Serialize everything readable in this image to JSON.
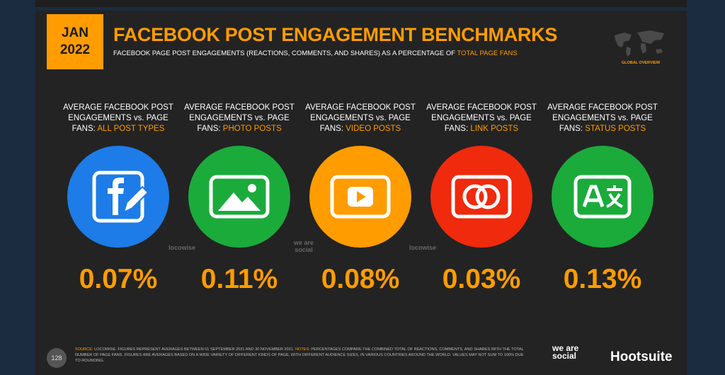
{
  "header": {
    "badge": [
      "JAN",
      "2022"
    ],
    "title": "FACEBOOK POST ENGAGEMENT BENCHMARKS",
    "subtitle": "FACEBOOK PAGE POST ENGAGEMENTS (REACTIONS, COMMENTS, AND SHARES) AS A PERCENTAGE OF",
    "subtitle_highlight": "TOTAL PAGE FANS",
    "region": "GLOBAL OVERVIEW"
  },
  "panels": [
    {
      "label": [
        "AVERAGE FACEBOOK POST",
        "ENGAGEMENTS vs. PAGE",
        "FANS:"
      ],
      "highlight": "ALL POST TYPES",
      "value": "0.07%",
      "color": "#1d7ce8"
    },
    {
      "label": [
        "AVERAGE FACEBOOK POST",
        "ENGAGEMENTS vs. PAGE",
        "FANS:"
      ],
      "highlight": "PHOTO POSTS",
      "value": "0.11%",
      "color": "#1bab3b"
    },
    {
      "label": [
        "AVERAGE FACEBOOK POST",
        "ENGAGEMENTS vs. PAGE",
        "FANS:"
      ],
      "highlight": "VIDEO POSTS",
      "value": "0.08%",
      "color": "#ff9c00"
    },
    {
      "label": [
        "AVERAGE FACEBOOK POST",
        "ENGAGEMENTS vs. PAGE",
        "FANS:"
      ],
      "highlight": "LINK POSTS",
      "value": "0.03%",
      "color": "#f02a0c"
    },
    {
      "label": [
        "AVERAGE FACEBOOK POST",
        "ENGAGEMENTS vs. PAGE",
        "FANS:"
      ],
      "highlight": "STATUS POSTS",
      "value": "0.13%",
      "color": "#1bab3b"
    }
  ],
  "watermarks": [
    "locowise",
    "we are social",
    "locowise"
  ],
  "footer": {
    "page": "128",
    "source_label": "SOURCE:",
    "source": "LOCOWISE. FIGURES REPRESENT AVERAGES BETWEEN 01 SEPTEMBER 2021 AND 30 NOVEMBER 2021.",
    "notes_label": "NOTES:",
    "notes": "PERCENTAGES COMPARE THE COMBINED TOTAL OF REACTIONS, COMMENTS, AND SHARES WITH THE TOTAL NUMBER OF PAGE FANS. FIGURES ARE AVERAGES BASED ON A WIDE VARIETY OF DIFFERENT KINDS OF PAGE, WITH DIFFERENT AUDIENCE SIZES, IN VARIOUS COUNTRIES AROUND THE WORLD. VALUES MAY NOT SUM TO 100% DUE TO ROUNDING.",
    "logo_left": "we are social",
    "logo_right": "Hootsuite"
  }
}
